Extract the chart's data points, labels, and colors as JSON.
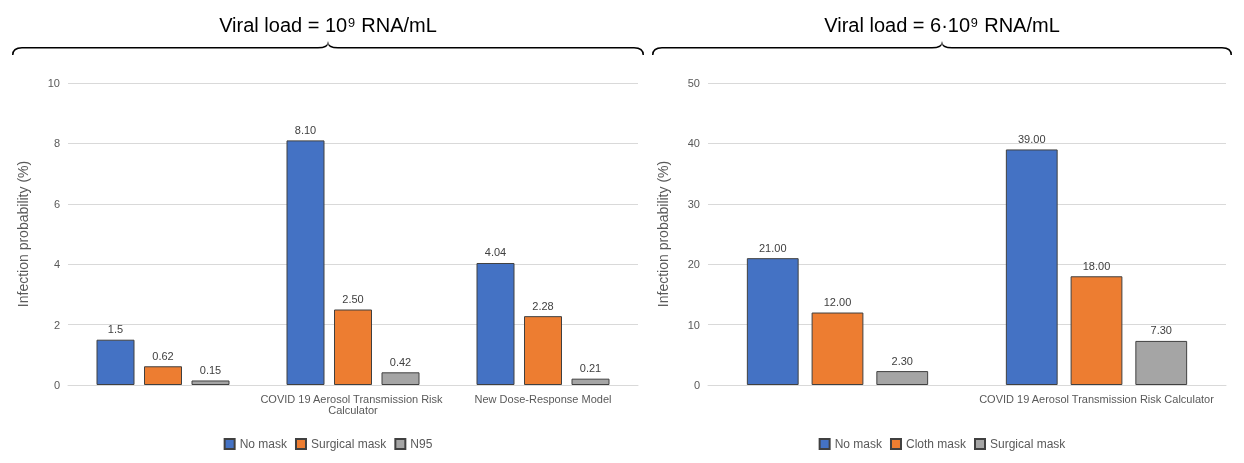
{
  "chart_data": [
    {
      "type": "bar",
      "title": "Viral load = 10⁹ RNA/mL",
      "ylabel": "Infection probability (%)",
      "categories": [
        null,
        "COVID 19 Aerosol Transmission Risk Calculator",
        "New Dose-Response Model"
      ],
      "ylim": [
        0,
        10
      ],
      "yticks": [
        0,
        2,
        4,
        6,
        8,
        10
      ],
      "grid": "y",
      "legend": "bottom",
      "series": [
        {
          "name": "No mask",
          "color": "#4472c4",
          "values": [
            1.5,
            8.1,
            4.04
          ],
          "value_labels": [
            "1.5",
            "8.10",
            "4.04"
          ]
        },
        {
          "name": "Surgical mask",
          "color": "#ed7d31",
          "values": [
            0.62,
            2.5,
            2.28
          ],
          "value_labels": [
            "0.62",
            "2.50",
            "2.28"
          ]
        },
        {
          "name": "N95",
          "color": "#a5a5a5",
          "values": [
            0.15,
            0.42,
            0.21
          ],
          "value_labels": [
            "0.15",
            "0.42",
            "0.21"
          ]
        }
      ]
    },
    {
      "type": "bar",
      "title": "Viral load = 6·10⁹ RNA/mL",
      "ylabel": "Infection probability (%)",
      "categories": [
        null,
        "COVID 19 Aerosol Transmission Risk Calculator"
      ],
      "ylim": [
        0,
        50
      ],
      "yticks": [
        0,
        10,
        20,
        30,
        40,
        50
      ],
      "grid": "y",
      "legend": "bottom",
      "series": [
        {
          "name": "No mask",
          "color": "#4472c4",
          "values": [
            21,
            39
          ],
          "value_labels": [
            "21.00",
            "39.00"
          ]
        },
        {
          "name": "Cloth mask",
          "color": "#ed7d31",
          "values": [
            12,
            18
          ],
          "value_labels": [
            "12.00",
            "18.00"
          ]
        },
        {
          "name": "Surgical mask",
          "color": "#a5a5a5",
          "values": [
            2.3,
            7.3
          ],
          "value_labels": [
            "2.30",
            "7.30"
          ]
        }
      ]
    }
  ]
}
